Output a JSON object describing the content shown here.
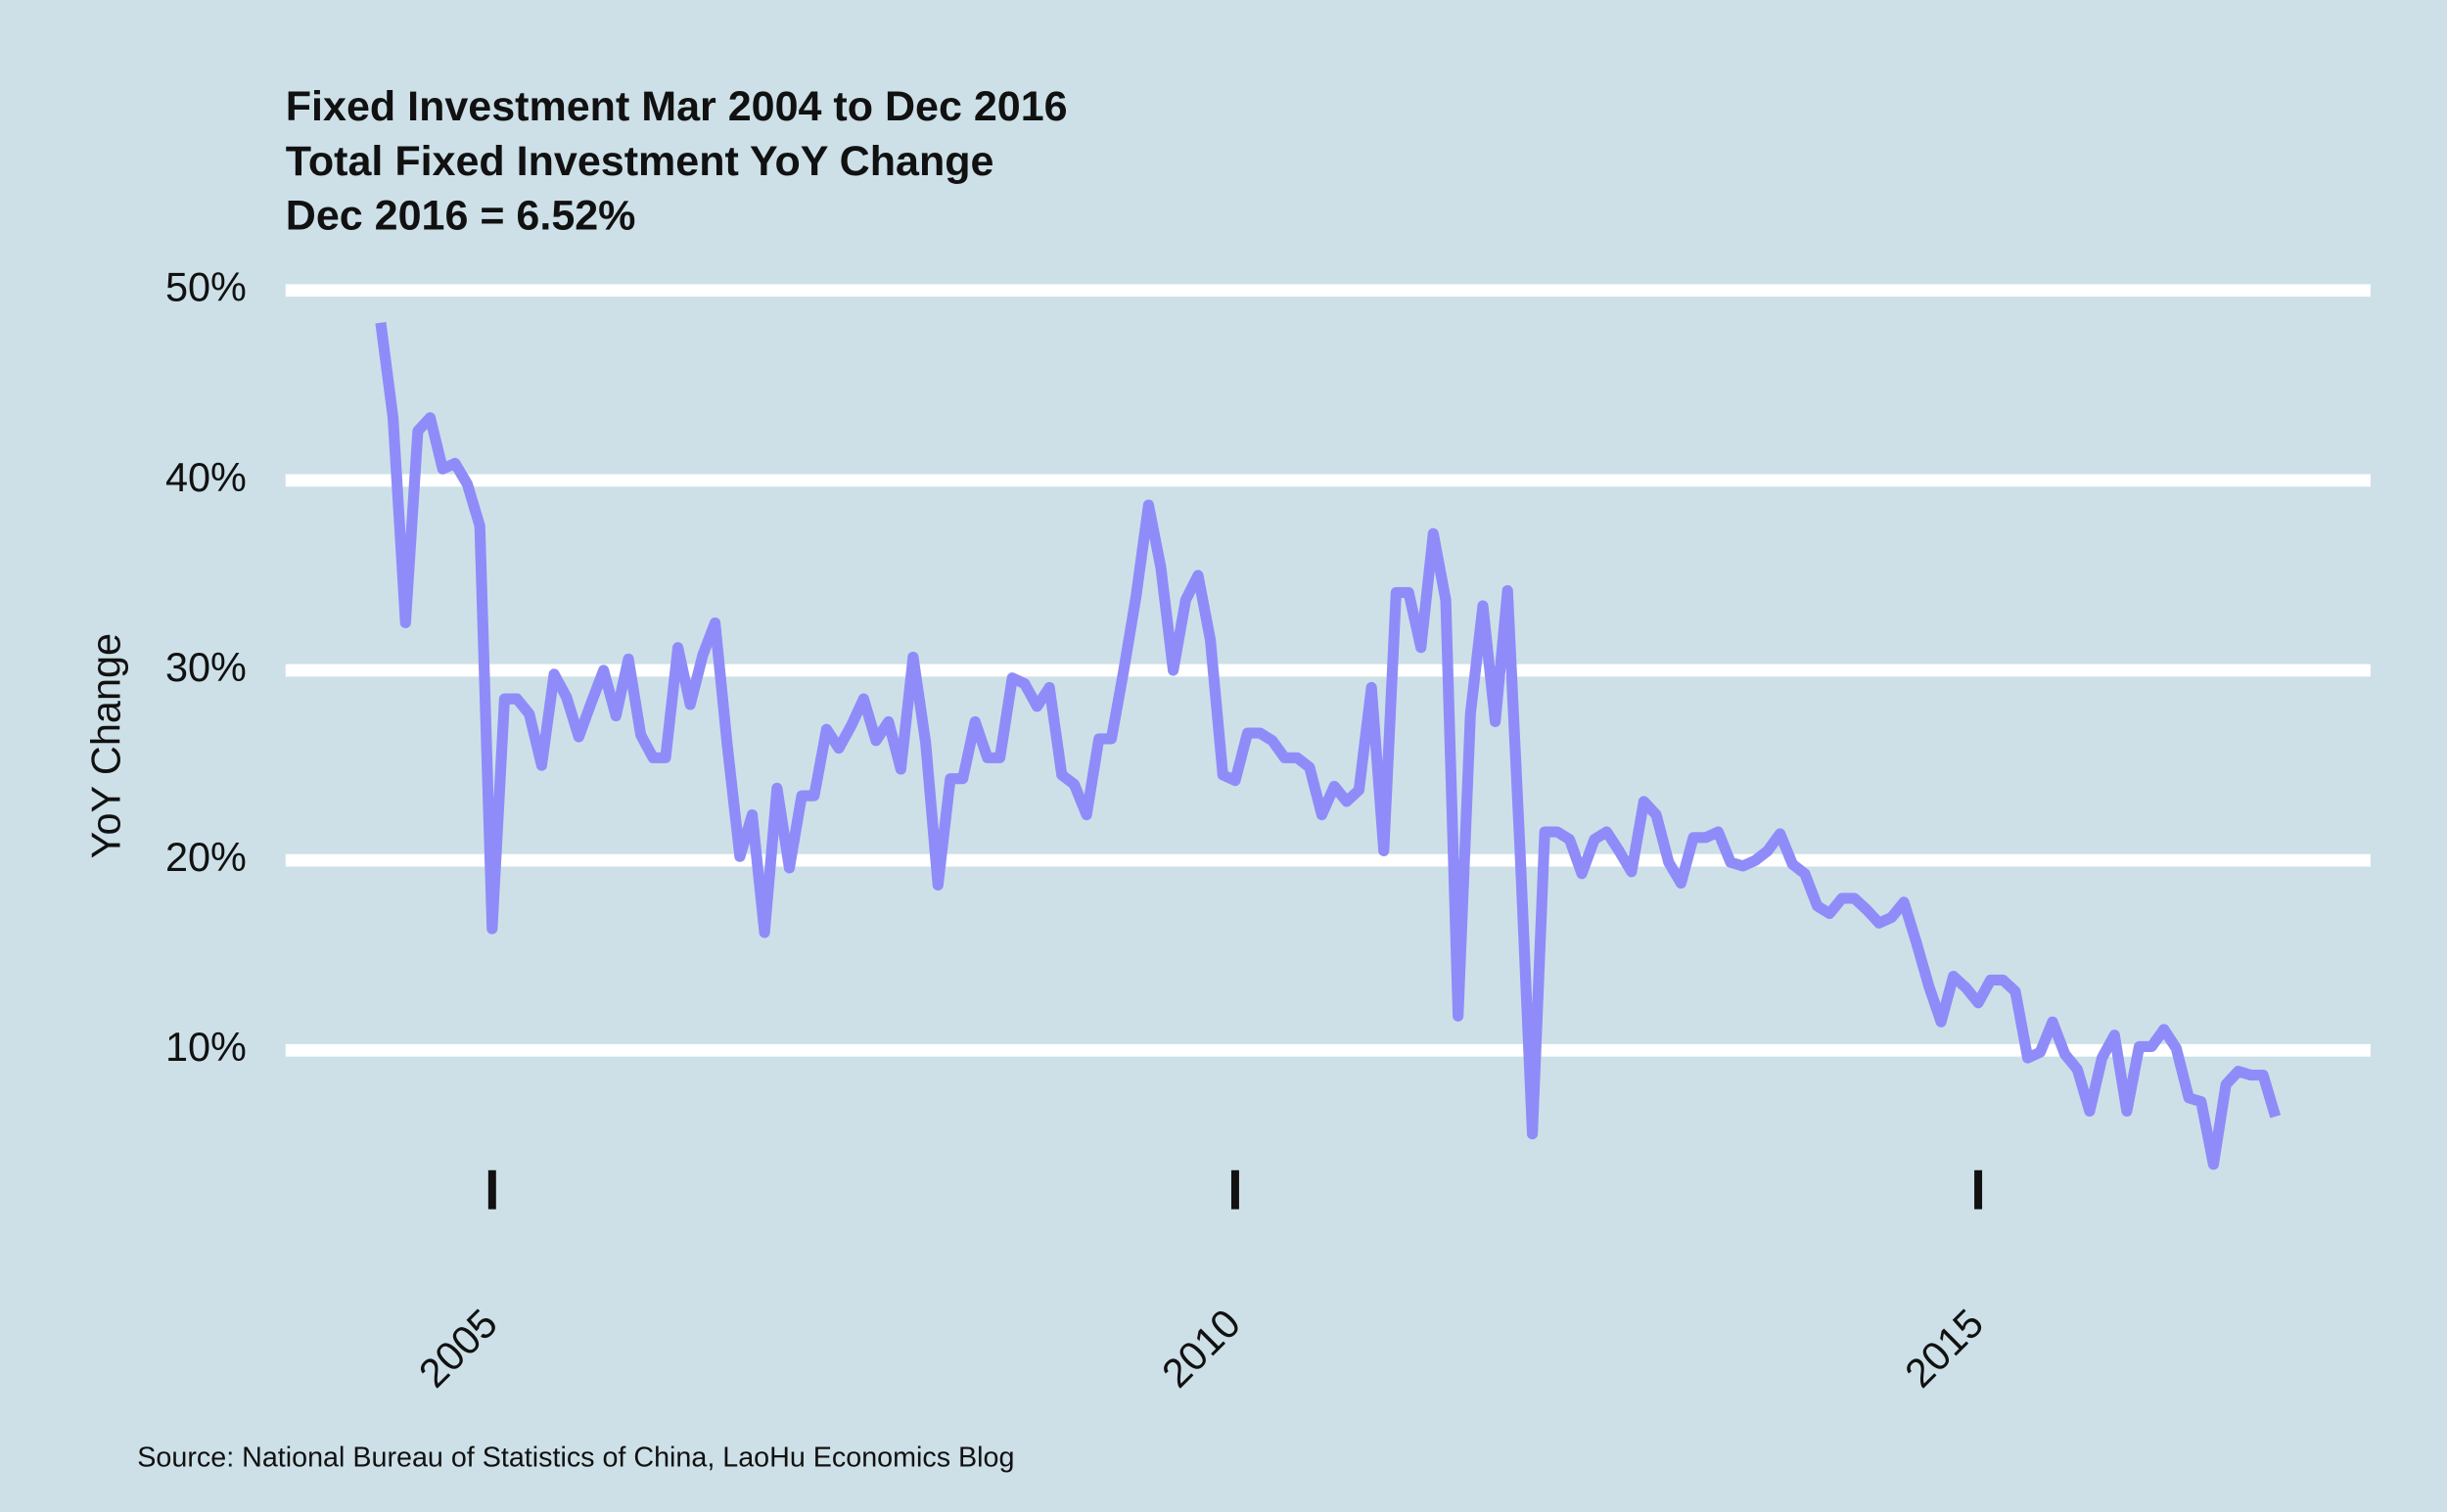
{
  "chart_data": {
    "type": "line",
    "title": [
      "Fixed Investment Mar 2004 to Dec 2016",
      "Total Fixed Investment YoY Change",
      "Dec 2016 = 6.52%"
    ],
    "y_label": "YoY Change",
    "caption": "Source: National Bureau of Statistics of China, LaoHu Economics Blog",
    "color": "#8f8cf9",
    "grid": true,
    "xlim": [
      2003.61,
      2017.64
    ],
    "xticks": [
      2005,
      2010,
      2015
    ],
    "ylim": [
      1.8,
      50.5
    ],
    "yticks": [
      {
        "value": 10,
        "label": "10%"
      },
      {
        "value": 20,
        "label": "20%"
      },
      {
        "value": 30,
        "label": "30%"
      },
      {
        "value": 40,
        "label": "40%"
      },
      {
        "value": 50,
        "label": "50%"
      }
    ],
    "x": [
      2004.25,
      2004.333,
      2004.417,
      2004.5,
      2004.583,
      2004.667,
      2004.75,
      2004.833,
      2004.917,
      2005,
      2005.083,
      2005.167,
      2005.25,
      2005.333,
      2005.417,
      2005.5,
      2005.583,
      2005.667,
      2005.75,
      2005.833,
      2005.917,
      2006,
      2006.083,
      2006.167,
      2006.25,
      2006.333,
      2006.417,
      2006.5,
      2006.583,
      2006.667,
      2006.75,
      2006.833,
      2006.917,
      2007,
      2007.083,
      2007.167,
      2007.25,
      2007.333,
      2007.417,
      2007.5,
      2007.583,
      2007.667,
      2007.75,
      2007.833,
      2007.917,
      2008,
      2008.083,
      2008.167,
      2008.25,
      2008.333,
      2008.417,
      2008.5,
      2008.583,
      2008.667,
      2008.75,
      2008.833,
      2008.917,
      2009,
      2009.083,
      2009.167,
      2009.25,
      2009.333,
      2009.417,
      2009.5,
      2009.583,
      2009.667,
      2009.75,
      2009.833,
      2009.917,
      2010,
      2010.083,
      2010.167,
      2010.25,
      2010.333,
      2010.417,
      2010.5,
      2010.583,
      2010.667,
      2010.75,
      2010.833,
      2010.917,
      2011,
      2011.083,
      2011.167,
      2011.25,
      2011.333,
      2011.417,
      2011.5,
      2011.583,
      2011.667,
      2011.75,
      2011.833,
      2011.917,
      2012,
      2012.083,
      2012.167,
      2012.25,
      2012.333,
      2012.417,
      2012.5,
      2012.583,
      2012.667,
      2012.75,
      2012.833,
      2012.917,
      2013,
      2013.083,
      2013.167,
      2013.25,
      2013.333,
      2013.417,
      2013.5,
      2013.583,
      2013.667,
      2013.75,
      2013.833,
      2013.917,
      2014,
      2014.083,
      2014.167,
      2014.25,
      2014.333,
      2014.417,
      2014.5,
      2014.583,
      2014.667,
      2014.75,
      2014.833,
      2014.917,
      2015,
      2015.083,
      2015.167,
      2015.25,
      2015.333,
      2015.417,
      2015.5,
      2015.583,
      2015.667,
      2015.75,
      2015.833,
      2015.917,
      2016,
      2016.083,
      2016.167,
      2016.25,
      2016.333,
      2016.417,
      2016.5,
      2016.583,
      2016.667,
      2016.75,
      2016.833,
      2016.917,
      2017
    ],
    "values": [
      48.3,
      43.3,
      32.5,
      42.6,
      43.3,
      40.6,
      40.9,
      39.8,
      37.6,
      16.4,
      28.5,
      28.5,
      27.7,
      25.0,
      29.8,
      28.6,
      26.5,
      28.3,
      30.0,
      27.6,
      30.6,
      26.6,
      25.4,
      25.4,
      31.2,
      28.2,
      30.8,
      32.5,
      26.0,
      20.2,
      22.4,
      16.2,
      23.8,
      19.6,
      23.4,
      23.4,
      26.9,
      25.9,
      27.1,
      28.5,
      26.3,
      27.3,
      24.8,
      30.7,
      26.2,
      18.7,
      24.3,
      24.3,
      27.3,
      25.4,
      25.4,
      29.6,
      29.3,
      28.1,
      29.1,
      24.5,
      24.0,
      22.4,
      26.4,
      26.4,
      30.0,
      33.9,
      38.7,
      35.4,
      30.0,
      33.7,
      35.0,
      31.6,
      24.5,
      24.2,
      26.7,
      26.7,
      26.3,
      25.4,
      25.4,
      24.9,
      22.4,
      23.9,
      23.1,
      23.7,
      29.1,
      20.5,
      34.1,
      34.1,
      31.2,
      37.2,
      33.7,
      11.8,
      27.7,
      33.4,
      27.3,
      34.2,
      20.5,
      5.6,
      21.5,
      21.5,
      21.1,
      19.3,
      21.1,
      21.5,
      20.5,
      19.4,
      23.1,
      22.4,
      19.9,
      18.8,
      21.2,
      21.2,
      21.5,
      19.9,
      19.7,
      20.0,
      20.5,
      21.4,
      19.8,
      19.3,
      17.6,
      17.2,
      18.0,
      18.0,
      17.4,
      16.7,
      17.0,
      17.8,
      15.7,
      13.4,
      11.5,
      13.9,
      13.3,
      12.5,
      13.7,
      13.7,
      13.1,
      9.6,
      9.9,
      11.5,
      9.8,
      9.0,
      6.8,
      9.6,
      10.8,
      6.8,
      10.2,
      10.2,
      11.1,
      10.1,
      7.5,
      7.3,
      4.0,
      8.2,
      8.9,
      8.7,
      8.7,
      6.52
    ]
  }
}
